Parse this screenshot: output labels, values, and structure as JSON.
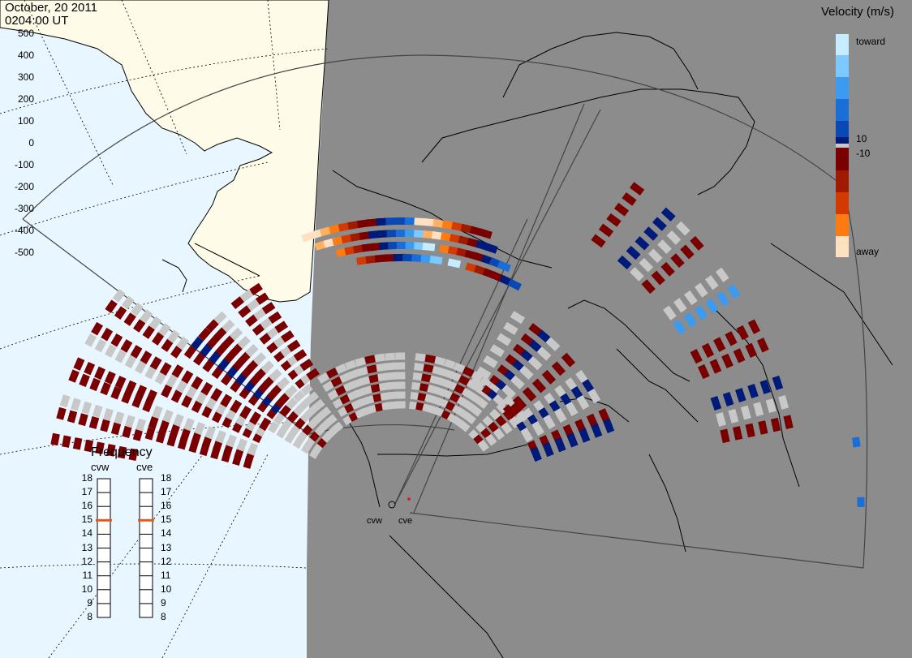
{
  "header": {
    "date": "October, 20 2011",
    "time": "0204:00 UT"
  },
  "colors": {
    "ocean": "#e8f6ff",
    "land": "#fffbe9",
    "night": "#8c8c8c",
    "ground_scatter": "#c8c8c8",
    "coastline": "#000000",
    "frequency_marker": "#e05a1a"
  },
  "velocity_scale": {
    "title": "Velocity (m/s)",
    "ticks": [
      "500",
      "400",
      "300",
      "200",
      "100",
      "0",
      "-100",
      "-200",
      "-300",
      "-400",
      "-500"
    ],
    "inner_labels": [
      "10",
      "-10"
    ],
    "toward_label": "toward",
    "away_label": "away",
    "toward_colors": [
      "#c8ecff",
      "#7cc8ff",
      "#3a9bf0",
      "#1a6ed8",
      "#0a48b4",
      "#001a7a"
    ],
    "away_colors": [
      "#7a0000",
      "#a01a00",
      "#d23a00",
      "#ff7a10",
      "#ffb060",
      "#ffe0c0"
    ]
  },
  "frequency": {
    "title": "Frequency",
    "radars": [
      {
        "name": "cvw",
        "frequency_mhz": 15
      },
      {
        "name": "cve",
        "frequency_mhz": 15
      }
    ],
    "ticks": [
      "18",
      "17",
      "16",
      "15",
      "14",
      "13",
      "12",
      "11",
      "10",
      "9",
      "8"
    ]
  },
  "map": {
    "radars": [
      "cvw",
      "cve"
    ]
  }
}
